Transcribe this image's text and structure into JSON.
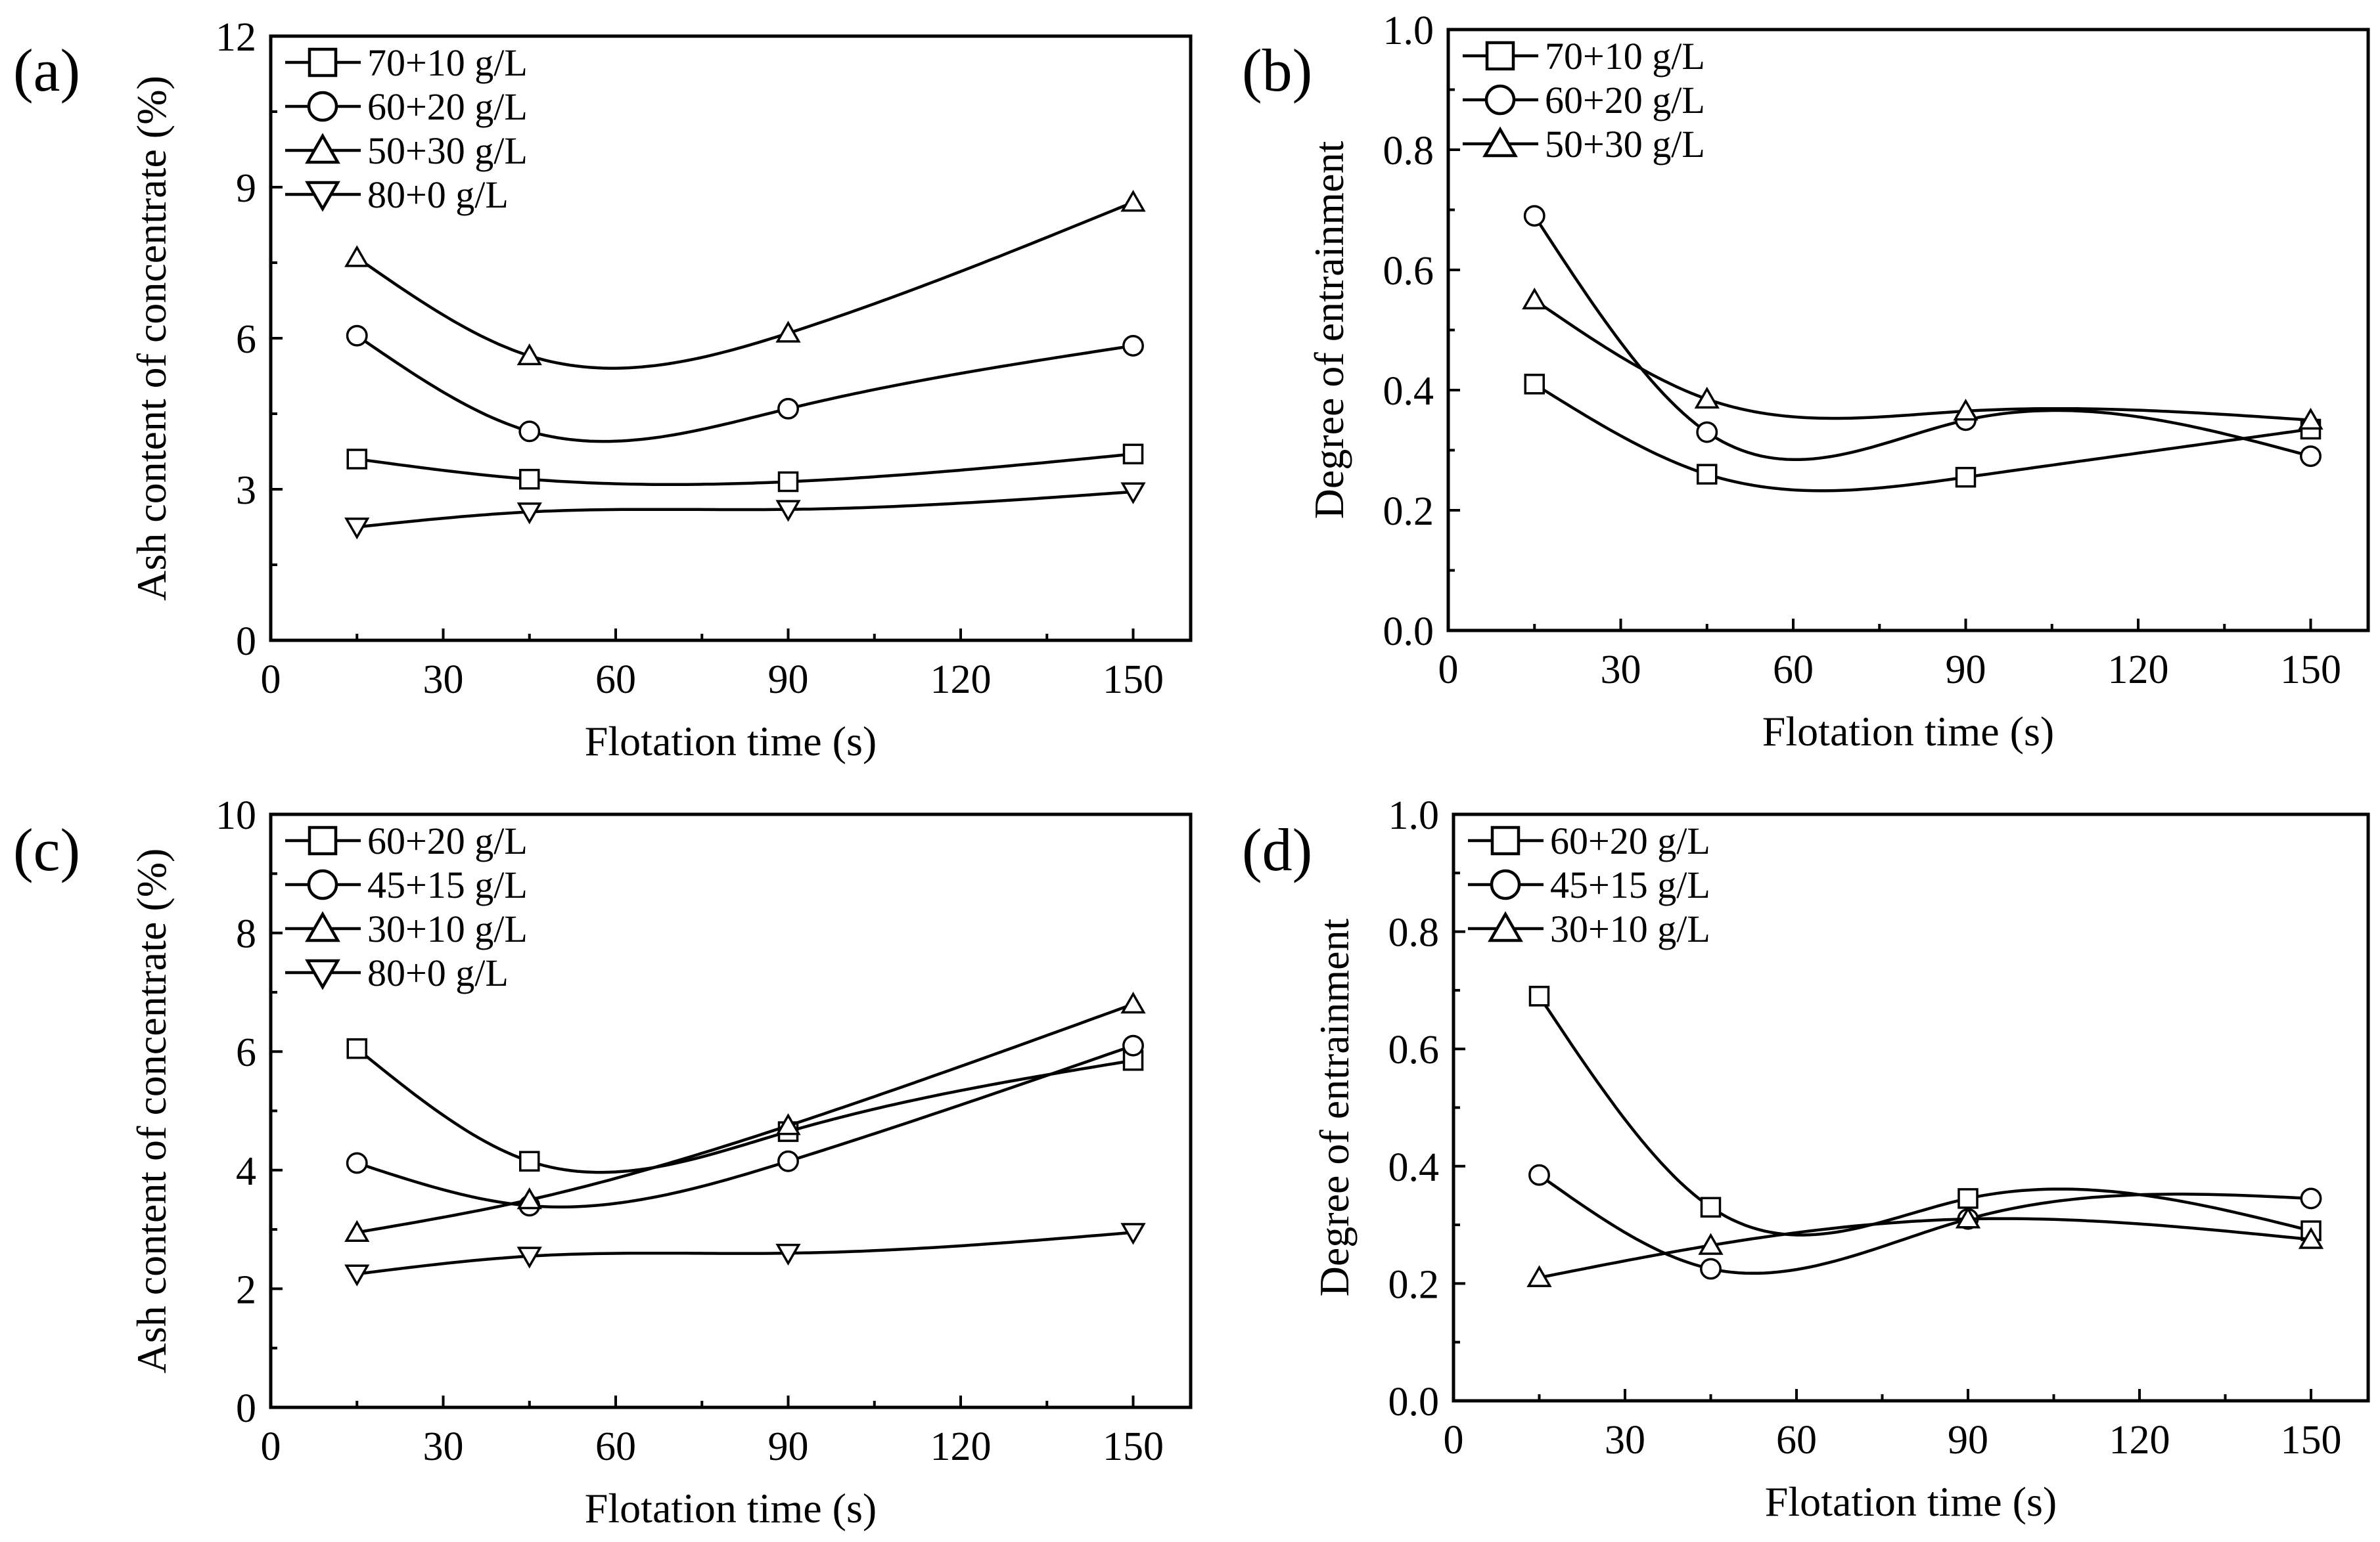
{
  "chart_data": [
    {
      "panel": "(a)",
      "type": "line",
      "xlabel": "Flotation time (s)",
      "ylabel": "Ash content of concentrate (%)",
      "xlim": [
        0,
        160
      ],
      "ylim": [
        0,
        12
      ],
      "xticks": [
        0,
        30,
        60,
        90,
        120,
        150
      ],
      "yticks": [
        0,
        3,
        6,
        9,
        12
      ],
      "x": [
        15,
        45,
        90,
        150
      ],
      "legend_position": "top-left",
      "series": [
        {
          "name": "70+10 g/L",
          "marker": "square",
          "values": [
            3.6,
            3.2,
            3.15,
            3.7
          ]
        },
        {
          "name": "60+20 g/L",
          "marker": "circle",
          "values": [
            6.05,
            4.15,
            4.6,
            5.85
          ]
        },
        {
          "name": "50+30 g/L",
          "marker": "triangle-up",
          "values": [
            7.6,
            5.65,
            6.1,
            8.7
          ]
        },
        {
          "name": "80+0 g/L",
          "marker": "triangle-down",
          "values": [
            2.25,
            2.55,
            2.6,
            2.95
          ]
        }
      ]
    },
    {
      "panel": "(b)",
      "type": "line",
      "xlabel": "Flotation time (s)",
      "ylabel": "Degree of entrainment",
      "xlim": [
        0,
        160
      ],
      "ylim": [
        0,
        1
      ],
      "xticks": [
        0,
        30,
        60,
        90,
        120,
        150
      ],
      "yticks": [
        0.0,
        0.2,
        0.4,
        0.6,
        0.8,
        1.0
      ],
      "y_tick_labels": [
        "0.0",
        "0.2",
        "0.4",
        "0.6",
        "0.8",
        "1.0"
      ],
      "x": [
        15,
        45,
        90,
        150
      ],
      "legend_position": "top-left",
      "series": [
        {
          "name": "70+10 g/L",
          "marker": "square",
          "values": [
            0.41,
            0.26,
            0.255,
            0.335
          ]
        },
        {
          "name": "60+20 g/L",
          "marker": "circle",
          "values": [
            0.69,
            0.33,
            0.35,
            0.29
          ]
        },
        {
          "name": "50+30 g/L",
          "marker": "triangle-up",
          "values": [
            0.55,
            0.385,
            0.365,
            0.35
          ]
        }
      ]
    },
    {
      "panel": "(c)",
      "type": "line",
      "xlabel": "Flotation time (s)",
      "ylabel": "Ash content of concentrate (%)",
      "xlim": [
        0,
        160
      ],
      "ylim": [
        0,
        10
      ],
      "xticks": [
        0,
        30,
        60,
        90,
        120,
        150
      ],
      "yticks": [
        0,
        2,
        4,
        6,
        8,
        10
      ],
      "x": [
        15,
        45,
        90,
        150
      ],
      "legend_position": "top-left",
      "series": [
        {
          "name": "60+20 g/L",
          "marker": "square",
          "values": [
            6.05,
            4.15,
            4.65,
            5.85
          ]
        },
        {
          "name": "45+15 g/L",
          "marker": "circle",
          "values": [
            4.12,
            3.4,
            4.15,
            6.1
          ]
        },
        {
          "name": "30+10 g/L",
          "marker": "triangle-up",
          "values": [
            2.95,
            3.5,
            4.75,
            6.8
          ]
        },
        {
          "name": "80+0 g/L",
          "marker": "triangle-down",
          "values": [
            2.25,
            2.55,
            2.6,
            2.95
          ]
        }
      ]
    },
    {
      "panel": "(d)",
      "type": "line",
      "xlabel": "Flotation time (s)",
      "ylabel": "Degree of entrainment",
      "xlim": [
        0,
        160
      ],
      "ylim": [
        0,
        1
      ],
      "xticks": [
        0,
        30,
        60,
        90,
        120,
        150
      ],
      "yticks": [
        0.0,
        0.2,
        0.4,
        0.6,
        0.8,
        1.0
      ],
      "y_tick_labels": [
        "0.0",
        "0.2",
        "0.4",
        "0.6",
        "0.8",
        "1.0"
      ],
      "x": [
        15,
        45,
        90,
        150
      ],
      "legend_position": "top-left",
      "series": [
        {
          "name": "60+20 g/L",
          "marker": "square",
          "values": [
            0.69,
            0.33,
            0.345,
            0.29
          ]
        },
        {
          "name": "45+15 g/L",
          "marker": "circle",
          "values": [
            0.385,
            0.225,
            0.31,
            0.345
          ]
        },
        {
          "name": "30+10 g/L",
          "marker": "triangle-up",
          "values": [
            0.21,
            0.265,
            0.31,
            0.275
          ]
        }
      ]
    }
  ]
}
